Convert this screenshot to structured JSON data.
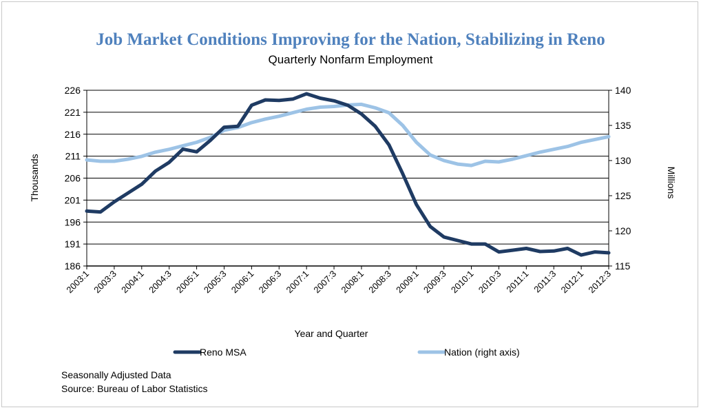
{
  "chart_data": {
    "type": "line",
    "title": "Job  Market Conditions Improving for the Nation, Stabilizing in Reno",
    "subtitle": "Quarterly Nonfarm Employment",
    "xlabel": "Year and Quarter",
    "ylabel_left": "Thousands",
    "ylabel_right": "Millions",
    "y_left_range": [
      186,
      226
    ],
    "y_left_ticks": [
      "226",
      "221",
      "216",
      "211",
      "206",
      "201",
      "196",
      "191",
      "186"
    ],
    "y_right_range": [
      115,
      140
    ],
    "y_right_ticks": [
      "140",
      "135",
      "130",
      "125",
      "120",
      "115"
    ],
    "grid": "horizontal",
    "legend_position": "bottom",
    "x_ticks": [
      "2003:1",
      "2003:3",
      "2004:1",
      "2004:3",
      "2005:1",
      "2005:3",
      "2006:1",
      "2006:3",
      "2007:1",
      "2007:3",
      "2008:1",
      "2008:3",
      "2009:1",
      "2009:3",
      "2010:1",
      "2010:3",
      "2011:1",
      "2011:3",
      "2012:1",
      "2012:3"
    ],
    "x": [
      "2003:1",
      "2003:2",
      "2003:3",
      "2003:4",
      "2004:1",
      "2004:2",
      "2004:3",
      "2004:4",
      "2005:1",
      "2005:2",
      "2005:3",
      "2005:4",
      "2006:1",
      "2006:2",
      "2006:3",
      "2006:4",
      "2007:1",
      "2007:2",
      "2007:3",
      "2007:4",
      "2008:1",
      "2008:2",
      "2008:3",
      "2008:4",
      "2009:1",
      "2009:2",
      "2009:3",
      "2009:4",
      "2010:1",
      "2010:2",
      "2010:3",
      "2010:4",
      "2011:1",
      "2011:2",
      "2011:3",
      "2011:4",
      "2012:1",
      "2012:2",
      "2012:3"
    ],
    "series": [
      {
        "name": "Reno MSA",
        "axis": "left",
        "color": "#1f3b63",
        "values": [
          198.5,
          198.3,
          200.6,
          202.6,
          204.6,
          207.6,
          209.6,
          212.6,
          212.0,
          214.6,
          217.6,
          217.8,
          222.6,
          223.8,
          223.7,
          224.0,
          225.2,
          224.2,
          223.6,
          222.6,
          220.6,
          217.8,
          213.6,
          207.0,
          200.0,
          195.0,
          192.6,
          191.8,
          191.0,
          191.0,
          189.2,
          189.6,
          190.0,
          189.3,
          189.4,
          190.0,
          188.5,
          189.2,
          189.0
        ]
      },
      {
        "name": "Nation (right axis)",
        "axis": "right",
        "color": "#9dc3e6",
        "values": [
          130.1,
          129.9,
          129.9,
          130.2,
          130.6,
          131.2,
          131.6,
          132.1,
          132.6,
          133.3,
          134.3,
          134.7,
          135.4,
          135.9,
          136.3,
          136.8,
          137.3,
          137.6,
          137.7,
          137.9,
          138.0,
          137.5,
          136.8,
          135.0,
          132.6,
          130.8,
          130.0,
          129.5,
          129.3,
          129.9,
          129.8,
          130.2,
          130.7,
          131.2,
          131.6,
          132.0,
          132.6,
          133.0,
          133.4
        ]
      }
    ]
  },
  "notes": {
    "line1": "Seasonally Adjusted Data",
    "line2": "Source: Bureau of Labor  Statistics"
  }
}
